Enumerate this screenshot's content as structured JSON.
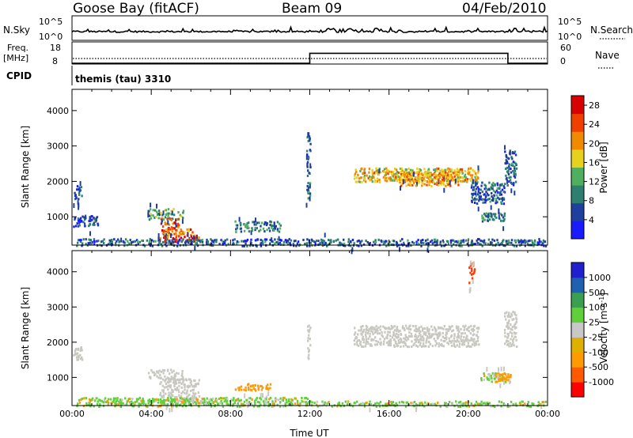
{
  "header": {
    "station": "Goose Bay (fitACF)",
    "beam": "Beam 09",
    "date": "04/Feb/2010"
  },
  "side_labels": {
    "nsky": "N.Sky",
    "nsearch": "N.Search",
    "freq": "Freq.",
    "freq_unit": "[MHz]",
    "nave": "Nave",
    "cpid": "CPID",
    "cpid_value": "themis (tau) 3310"
  },
  "top_axes": {
    "noise_left_ticks": [
      "10^5",
      "10^0"
    ],
    "noise_right_ticks": [
      "10^5",
      "10^0"
    ],
    "freq_ticks": [
      "18",
      "8"
    ],
    "nave_ticks": [
      "60",
      "0"
    ]
  },
  "colors": {
    "power_scale": [
      "#1a1aff",
      "#1f3f9f",
      "#2e7f6f",
      "#4faf5f",
      "#e6d21e",
      "#f08a00",
      "#f04000",
      "#d80000"
    ],
    "velocity_scale": [
      "#ff0000",
      "#ff5a00",
      "#ff9a00",
      "#e0b000",
      "#c8c8c8",
      "#5fd03a",
      "#3aa050",
      "#2060b0",
      "#2020d0"
    ],
    "ground_scatter": "#c8c8c0"
  },
  "chart_data": [
    {
      "type": "line",
      "name": "noise",
      "x_ticks": [],
      "description_series": [
        {
          "name": "N.Sky",
          "style": "solid"
        },
        {
          "name": "N.Search",
          "style": "dotted"
        }
      ],
      "y_ticks": [
        "10^0",
        "10^5"
      ]
    },
    {
      "type": "line",
      "name": "frequency-nave",
      "x": [
        0,
        12,
        12,
        22,
        22,
        24
      ],
      "y_freq": [
        8,
        8,
        15,
        15,
        8,
        8
      ],
      "nave_level": 4,
      "ylim_freq": [
        8,
        18
      ],
      "ylim_nave": [
        0,
        60
      ]
    },
    {
      "type": "heatmap",
      "name": "power",
      "ylabel": "Slant Range [km]",
      "y_ticks": [
        1000,
        2000,
        3000,
        4000
      ],
      "ylim": [
        200,
        4600
      ],
      "xlim": [
        0,
        24
      ],
      "colorbar_label": "Power [dB]",
      "colorbar_ticks": [
        4,
        8,
        12,
        16,
        20,
        24,
        28
      ],
      "colorbar_range": [
        0,
        30
      ],
      "blobs": [
        {
          "t0": 0.05,
          "t1": 0.5,
          "r0": 1500,
          "r1": 1900,
          "v": 7
        },
        {
          "t0": 0.05,
          "t1": 1.3,
          "r0": 750,
          "r1": 1050,
          "v": 6
        },
        {
          "t0": 3.8,
          "t1": 5.6,
          "r0": 950,
          "r1": 1250,
          "v": 12
        },
        {
          "t0": 4.4,
          "t1": 5.4,
          "r0": 700,
          "r1": 1000,
          "v": 24
        },
        {
          "t0": 4.5,
          "t1": 6.1,
          "r0": 500,
          "r1": 700,
          "v": 22
        },
        {
          "t0": 4.3,
          "t1": 6.4,
          "r0": 300,
          "r1": 500,
          "v": 26
        },
        {
          "t0": 8.2,
          "t1": 10.5,
          "r0": 600,
          "r1": 900,
          "v": 9
        },
        {
          "t0": 11.8,
          "t1": 12.0,
          "r0": 1500,
          "r1": 2600,
          "v": 9
        },
        {
          "t0": 11.8,
          "t1": 12.0,
          "r0": 2700,
          "r1": 3300,
          "v": 6
        },
        {
          "t0": 14.2,
          "t1": 20.5,
          "r0": 2000,
          "r1": 2400,
          "v": 18
        },
        {
          "t0": 16.5,
          "t1": 19.5,
          "r0": 1900,
          "r1": 2300,
          "v": 20
        },
        {
          "t0": 20.1,
          "t1": 21.8,
          "r0": 1400,
          "r1": 2000,
          "v": 7
        },
        {
          "t0": 20.6,
          "t1": 21.8,
          "r0": 900,
          "r1": 1150,
          "v": 10
        },
        {
          "t0": 21.8,
          "t1": 22.4,
          "r0": 1900,
          "r1": 2900,
          "v": 7
        },
        {
          "t0": 0.2,
          "t1": 23.9,
          "r0": 200,
          "r1": 400,
          "v": 7
        }
      ]
    },
    {
      "type": "heatmap",
      "name": "velocity",
      "ylabel": "Slant Range [km]",
      "xlabel": "Time UT",
      "x_ticks": [
        "00:00",
        "04:00",
        "08:00",
        "12:00",
        "16:00",
        "20:00",
        "00:00"
      ],
      "y_ticks": [
        1000,
        2000,
        3000,
        4000
      ],
      "ylim": [
        200,
        4600
      ],
      "xlim": [
        0,
        24
      ],
      "colorbar_label": "Velocity [m s",
      "colorbar_unit_exp": "-1",
      "colorbar_unit_close": "]",
      "colorbar_ticks": [
        "-1000",
        "-500",
        "-100",
        "-25",
        "25",
        "100",
        "500",
        "1000"
      ],
      "blobs": [
        {
          "t0": 0.05,
          "t1": 0.5,
          "r0": 1500,
          "r1": 1900,
          "c": "gs"
        },
        {
          "t0": 3.8,
          "t1": 5.6,
          "r0": 950,
          "r1": 1250,
          "c": "gs"
        },
        {
          "t0": 4.4,
          "t1": 6.4,
          "r0": 300,
          "r1": 1000,
          "c": "gs"
        },
        {
          "t0": 8.2,
          "t1": 10.0,
          "r0": 650,
          "r1": 850,
          "c": "orange"
        },
        {
          "t0": 11.8,
          "t1": 12.0,
          "r0": 1500,
          "r1": 2600,
          "c": "gs"
        },
        {
          "t0": 14.2,
          "t1": 20.5,
          "r0": 1900,
          "r1": 2500,
          "c": "gs"
        },
        {
          "t0": 20.6,
          "t1": 22.1,
          "r0": 900,
          "r1": 1150,
          "c": "green"
        },
        {
          "t0": 21.3,
          "t1": 22.1,
          "r0": 900,
          "r1": 1150,
          "c": "orange"
        },
        {
          "t0": 21.8,
          "t1": 22.4,
          "r0": 1900,
          "r1": 2900,
          "c": "gs"
        },
        {
          "t0": 20.0,
          "t1": 20.3,
          "r0": 3700,
          "r1": 4300,
          "c": "red"
        },
        {
          "t0": 0.2,
          "t1": 12.0,
          "r0": 200,
          "r1": 450,
          "c": "green"
        },
        {
          "t0": 12.0,
          "t1": 23.9,
          "r0": 200,
          "r1": 350,
          "c": "green"
        }
      ]
    }
  ]
}
